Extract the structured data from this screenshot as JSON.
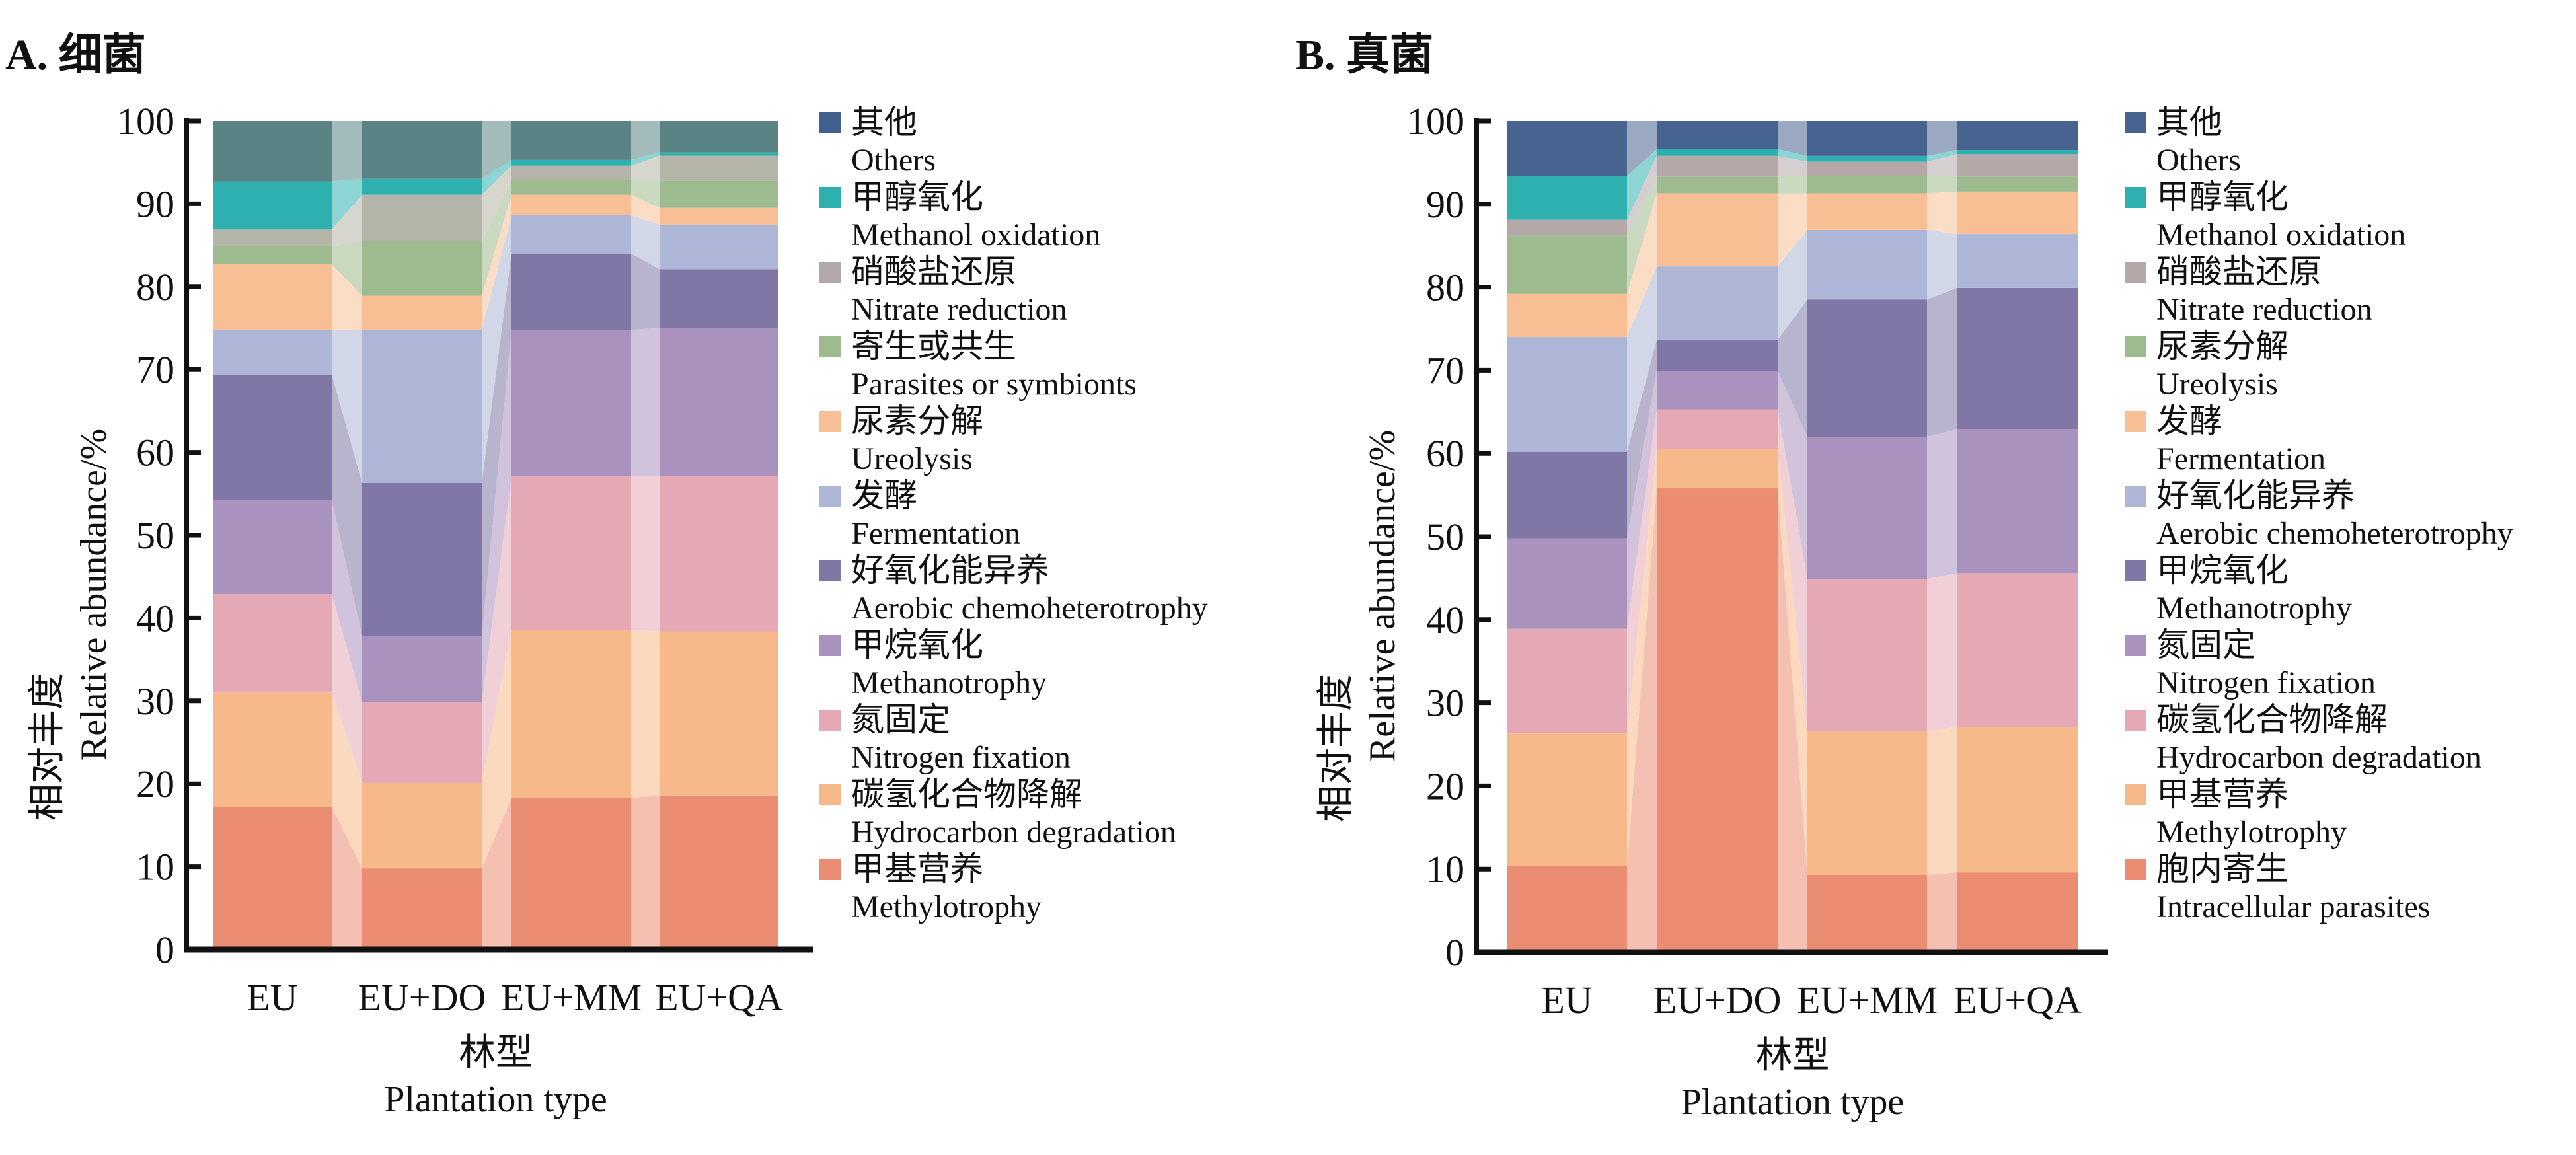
{
  "figure": {
    "panels": [
      {
        "id": "A",
        "title": "A. 细菌",
        "ylabel_cn": "相对丰度",
        "ylabel_en": "Relative abundance/%",
        "xlabel_cn": "林型",
        "xlabel_en": "Plantation type"
      },
      {
        "id": "B",
        "title": "B. 真菌",
        "ylabel_cn": "相对丰度",
        "ylabel_en": "Relative abundance/%",
        "xlabel_cn": "林型",
        "xlabel_en": "Plantation type"
      }
    ]
  },
  "chart_data": [
    {
      "type": "bar",
      "stacked": true,
      "connected_alluvial": true,
      "title": "A. 细菌",
      "xlabel": "林型 Plantation type",
      "ylabel": "相对丰度 Relative abundance/%",
      "ylim": [
        0,
        100
      ],
      "yticks": [
        0,
        10,
        20,
        30,
        40,
        50,
        60,
        70,
        80,
        90,
        100
      ],
      "categories": [
        "EU",
        "EU+DO",
        "EU+MM",
        "EU+QA"
      ],
      "legend_position": "right",
      "series": [
        {
          "name_cn": "甲基营养",
          "name_en": "Methylotrophy",
          "color": "#eb8d72",
          "values": [
            17.2,
            9.8,
            18.3,
            18.6
          ]
        },
        {
          "name_cn": "碳氢化合物降解",
          "name_en": "Hydrocarbon degradation",
          "color": "#f7b98a",
          "values": [
            13.8,
            10.3,
            20.3,
            19.8
          ]
        },
        {
          "name_cn": "氮固定",
          "name_en": "Nitrogen fixation",
          "color": "#e4a9b4",
          "values": [
            11.9,
            9.7,
            18.5,
            18.7
          ]
        },
        {
          "name_cn": "甲烷氧化",
          "name_en": "Methanotrophy",
          "color": "#a992bd",
          "values": [
            11.4,
            8.0,
            17.7,
            17.9
          ]
        },
        {
          "name_cn": "好氧化能异养",
          "name_en": "Aerobic chemoheterotrophy",
          "color": "#8077a6",
          "values": [
            15.1,
            18.5,
            9.2,
            7.1
          ]
        },
        {
          "name_cn": "发酵",
          "name_en": "Fermentation",
          "color": "#adb6d6",
          "values": [
            5.4,
            18.5,
            4.6,
            5.4
          ]
        },
        {
          "name_cn": "尿素分解",
          "name_en": "Ureolysis",
          "color": "#f8bf95",
          "values": [
            7.9,
            4.1,
            2.5,
            2.0
          ]
        },
        {
          "name_cn": "寄生或共生",
          "name_en": "Parasites or symbionts",
          "color": "#9dbb8f",
          "values": [
            2.2,
            6.6,
            1.8,
            3.3
          ]
        },
        {
          "name_cn": "硝酸盐还原",
          "name_en": "Nitrate reduction",
          "color": "#b4b5a8",
          "legend_color": "#b3a8a8",
          "values": [
            2.0,
            5.6,
            1.7,
            3.0
          ]
        },
        {
          "name_cn": "甲醇氧化",
          "name_en": "Methanol oxidation",
          "color": "#2fb0b0",
          "values": [
            5.8,
            1.9,
            0.7,
            0.4
          ]
        },
        {
          "name_cn": "其他",
          "name_en": "Others",
          "color": "#5a8386",
          "legend_color": "#41608e",
          "values": [
            7.3,
            7.0,
            4.7,
            3.8
          ]
        }
      ]
    },
    {
      "type": "bar",
      "stacked": true,
      "connected_alluvial": true,
      "title": "B. 真菌",
      "xlabel": "林型 Plantation type",
      "ylabel": "相对丰度 Relative abundance/%",
      "ylim": [
        0,
        100
      ],
      "yticks": [
        0,
        10,
        20,
        30,
        40,
        50,
        60,
        70,
        80,
        90,
        100
      ],
      "categories": [
        "EU",
        "EU+DO",
        "EU+MM",
        "EU+QA"
      ],
      "legend_position": "right",
      "series": [
        {
          "name_cn": "胞内寄生",
          "name_en": "Intracellular parasites",
          "color": "#eb8d72",
          "values": [
            10.4,
            55.8,
            9.3,
            9.6
          ]
        },
        {
          "name_cn": "甲基营养",
          "name_en": "Methylotrophy",
          "color": "#f7b98a",
          "values": [
            15.9,
            4.7,
            17.2,
            17.5
          ]
        },
        {
          "name_cn": "碳氢化合物降解",
          "name_en": "Hydrocarbon degradation",
          "color": "#e4a9b4",
          "values": [
            12.6,
            4.8,
            18.4,
            18.5
          ]
        },
        {
          "name_cn": "氮固定",
          "name_en": "Nitrogen fixation",
          "color": "#a992bd",
          "values": [
            10.9,
            4.6,
            17.1,
            17.3
          ]
        },
        {
          "name_cn": "甲烷氧化",
          "name_en": "Methanotrophy",
          "color": "#8077a6",
          "values": [
            10.4,
            3.8,
            16.5,
            17.0
          ]
        },
        {
          "name_cn": "好氧化能异养",
          "name_en": "Aerobic chemoheterotrophy",
          "color": "#adb6d6",
          "values": [
            13.8,
            8.8,
            8.4,
            6.5
          ]
        },
        {
          "name_cn": "发酵",
          "name_en": "Fermentation",
          "color": "#f8bf95",
          "values": [
            5.2,
            8.8,
            4.4,
            5.1
          ]
        },
        {
          "name_cn": "尿素分解",
          "name_en": "Ureolysis",
          "color": "#9dbb8f",
          "values": [
            7.0,
            2.0,
            2.1,
            1.8
          ]
        },
        {
          "name_cn": "硝酸盐还原",
          "name_en": "Nitrate reduction",
          "color": "#b4a8a8",
          "values": [
            1.9,
            2.5,
            1.7,
            2.7
          ]
        },
        {
          "name_cn": "甲醇氧化",
          "name_en": "Methanol oxidation",
          "color": "#2fb0b0",
          "values": [
            5.3,
            0.8,
            0.7,
            0.5
          ]
        },
        {
          "name_cn": "其他",
          "name_en": "Others",
          "color": "#47638f",
          "values": [
            6.6,
            3.4,
            4.2,
            3.5
          ]
        }
      ]
    }
  ]
}
